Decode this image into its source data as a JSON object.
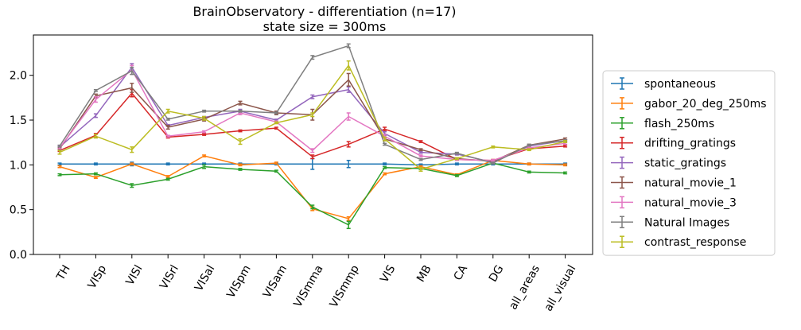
{
  "chart_data": {
    "type": "line",
    "title": "BrainObservatory - differentiation (n=17)",
    "subtitle": "state size = 300ms",
    "xlabel": "",
    "ylabel": "",
    "ylim": [
      0.0,
      2.45
    ],
    "yticks": [
      "0.0",
      "0.5",
      "1.0",
      "1.5",
      "2.0"
    ],
    "ytick_values": [
      0.0,
      0.5,
      1.0,
      1.5,
      2.0
    ],
    "categories": [
      "TH",
      "VISp",
      "VISl",
      "VISrl",
      "VISal",
      "VISpm",
      "VISam",
      "VISmma",
      "VISmmp",
      "VIS",
      "MB",
      "CA",
      "DG",
      "all_areas",
      "all_visual"
    ],
    "legend_position": "right",
    "error_bars": true,
    "grid": false,
    "series": [
      {
        "name": "spontaneous",
        "color": "#1f77b4",
        "values": [
          1.01,
          1.01,
          1.01,
          1.01,
          1.01,
          1.01,
          1.01,
          1.01,
          1.01,
          1.01,
          1.0,
          1.01,
          1.01,
          1.01,
          1.01
        ],
        "errors": [
          0.01,
          0.01,
          0.02,
          0.01,
          0.01,
          0.01,
          0.01,
          0.06,
          0.04,
          0.01,
          0.01,
          0.01,
          0.01,
          0.01,
          0.01
        ]
      },
      {
        "name": "gabor_20_deg_250ms",
        "color": "#ff7f0e",
        "values": [
          0.98,
          0.86,
          1.01,
          0.87,
          1.1,
          1.0,
          1.02,
          0.51,
          0.4,
          0.9,
          0.98,
          0.89,
          1.05,
          1.01,
          1.0
        ],
        "errors": [
          0.01,
          0.01,
          0.01,
          0.01,
          0.01,
          0.01,
          0.01,
          0.02,
          0.02,
          0.01,
          0.01,
          0.01,
          0.01,
          0.01,
          0.01
        ]
      },
      {
        "name": "flash_250ms",
        "color": "#2ca02c",
        "values": [
          0.89,
          0.9,
          0.77,
          0.84,
          0.98,
          0.95,
          0.93,
          0.53,
          0.33,
          0.97,
          0.96,
          0.88,
          1.02,
          0.92,
          0.91
        ],
        "errors": [
          0.01,
          0.01,
          0.02,
          0.01,
          0.02,
          0.01,
          0.01,
          0.02,
          0.04,
          0.01,
          0.01,
          0.01,
          0.01,
          0.01,
          0.01
        ]
      },
      {
        "name": "drifting_gratings",
        "color": "#d62728",
        "values": [
          1.16,
          1.33,
          1.8,
          1.31,
          1.34,
          1.38,
          1.41,
          1.09,
          1.23,
          1.4,
          1.26,
          1.06,
          1.05,
          1.18,
          1.21
        ],
        "errors": [
          0.01,
          0.02,
          0.04,
          0.01,
          0.01,
          0.01,
          0.01,
          0.02,
          0.03,
          0.02,
          0.01,
          0.01,
          0.01,
          0.01,
          0.01
        ]
      },
      {
        "name": "static_gratings",
        "color": "#9467bd",
        "values": [
          1.2,
          1.55,
          2.09,
          1.44,
          1.53,
          1.6,
          1.5,
          1.76,
          1.84,
          1.35,
          1.14,
          1.12,
          1.03,
          1.21,
          1.27
        ],
        "errors": [
          0.01,
          0.02,
          0.04,
          0.01,
          0.01,
          0.02,
          0.01,
          0.02,
          0.03,
          0.02,
          0.01,
          0.01,
          0.01,
          0.01,
          0.01
        ]
      },
      {
        "name": "natural_movie_1",
        "color": "#8c564b",
        "values": [
          1.18,
          1.77,
          1.86,
          1.42,
          1.51,
          1.69,
          1.58,
          1.56,
          1.95,
          1.29,
          1.17,
          1.07,
          1.04,
          1.22,
          1.29
        ],
        "errors": [
          0.01,
          0.02,
          0.05,
          0.02,
          0.02,
          0.02,
          0.02,
          0.06,
          0.07,
          0.02,
          0.01,
          0.01,
          0.01,
          0.01,
          0.01
        ]
      },
      {
        "name": "natural_movie_3",
        "color": "#e377c2",
        "values": [
          1.19,
          1.73,
          2.06,
          1.32,
          1.37,
          1.58,
          1.48,
          1.16,
          1.54,
          1.32,
          1.1,
          1.06,
          1.05,
          1.19,
          1.24
        ],
        "errors": [
          0.01,
          0.03,
          0.05,
          0.01,
          0.01,
          0.02,
          0.01,
          0.02,
          0.04,
          0.02,
          0.01,
          0.01,
          0.01,
          0.01,
          0.01
        ]
      },
      {
        "name": "Natural Images",
        "color": "#7f7f7f",
        "values": [
          1.21,
          1.83,
          2.05,
          1.51,
          1.6,
          1.6,
          1.58,
          2.2,
          2.33,
          1.23,
          1.06,
          1.13,
          1.02,
          1.22,
          1.27
        ],
        "errors": [
          0.01,
          0.01,
          0.04,
          0.01,
          0.01,
          0.01,
          0.01,
          0.02,
          0.02,
          0.01,
          0.01,
          0.01,
          0.01,
          0.01,
          0.01
        ]
      },
      {
        "name": "contrast_response",
        "color": "#bcbd22",
        "values": [
          1.14,
          1.32,
          1.17,
          1.6,
          1.52,
          1.26,
          1.47,
          1.56,
          2.11,
          1.29,
          0.95,
          1.07,
          1.2,
          1.17,
          1.26
        ],
        "errors": [
          0.02,
          0.02,
          0.03,
          0.02,
          0.02,
          0.03,
          0.01,
          0.02,
          0.05,
          0.02,
          0.02,
          0.01,
          0.01,
          0.01,
          0.01
        ]
      }
    ]
  }
}
